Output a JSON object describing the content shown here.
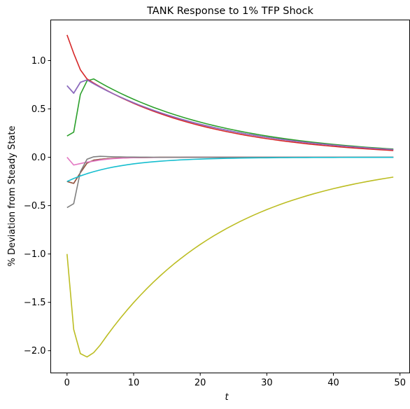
{
  "chart_data": {
    "type": "line",
    "title": "TANK Response to 1% TFP Shock",
    "xlabel": "t",
    "ylabel": "% Deviation from Steady State",
    "xlim": [
      -2.45,
      51.45
    ],
    "ylim": [
      -2.23,
      1.42
    ],
    "xticks": [
      0,
      10,
      20,
      30,
      40,
      50
    ],
    "yticks": [
      -2.0,
      -1.5,
      -1.0,
      -0.5,
      0.0,
      0.5,
      1.0
    ],
    "grid": false,
    "legend": "none",
    "series": [
      {
        "color": "#1f77b4",
        "shape": "blend",
        "start": [
          0.74,
          0.663,
          0.775,
          0.8
        ],
        "peak_at": 3,
        "end": 0.08
      },
      {
        "color": "#ff7f0e",
        "shape": "blend",
        "start": [
          -0.25,
          -0.27,
          -0.16,
          -0.06,
          -0.03
        ],
        "peak_at": 4,
        "end": 0.0
      },
      {
        "color": "#2ca02c",
        "shape": "blend",
        "start": [
          0.22,
          0.26,
          0.65,
          0.79,
          0.81
        ],
        "peak_at": 4,
        "end": 0.085
      },
      {
        "color": "#d62728",
        "shape": "blend",
        "start": [
          1.265,
          1.075,
          0.905,
          0.81
        ],
        "peak_at": 3,
        "end": 0.07
      },
      {
        "color": "#9467bd",
        "shape": "blend",
        "start": [
          0.74,
          0.663,
          0.775,
          0.8
        ],
        "peak_at": 3,
        "end": 0.08
      },
      {
        "color": "#8c564b",
        "shape": "blend",
        "start": [
          -0.25,
          -0.27,
          -0.16,
          -0.06,
          -0.03
        ],
        "peak_at": 4,
        "end": 0.0
      },
      {
        "color": "#e377c2",
        "shape": "blend",
        "start": [
          0.0,
          -0.08,
          -0.065,
          -0.05,
          -0.04
        ],
        "peak_at": 4,
        "end": 0.0
      },
      {
        "color": "#7f7f7f",
        "shape": "blend",
        "start": [
          -0.52,
          -0.48,
          -0.15,
          -0.02,
          0.005,
          0.01
        ],
        "peak_at": 5,
        "end": 0.0
      },
      {
        "color": "#bcbd22",
        "shape": "blend",
        "start": [
          -1.0,
          -1.78,
          -2.03,
          -2.065,
          -2.02,
          -1.94
        ],
        "peak_at": 5,
        "end": -0.205
      },
      {
        "color": "#17becf",
        "shape": "approach",
        "start": -0.25,
        "rate": 0.13,
        "end": 0.0
      }
    ]
  }
}
